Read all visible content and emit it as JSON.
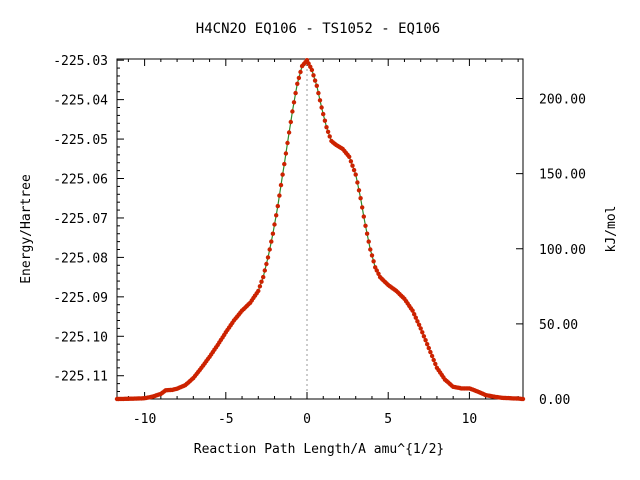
{
  "chart_data": {
    "type": "line",
    "title": "H4CN2O   EQ106 - TS1052 - EQ106",
    "xlabel": "Reaction Path Length/A amu^{1/2}",
    "ylabel": "Energy/Hartree",
    "y2label": "kJ/mol",
    "xlim": [
      -11.7,
      13.3
    ],
    "ylim": [
      -225.1159,
      -225.0297
    ],
    "y2lim": [
      0,
      226.3
    ],
    "grid": false,
    "x_ticks": [
      -10,
      -5,
      0,
      5,
      10
    ],
    "x_tick_labels": [
      "-10",
      "-5",
      "0",
      "5",
      "10"
    ],
    "y_ticks": [
      -225.03,
      -225.04,
      -225.05,
      -225.06,
      -225.07,
      -225.08,
      -225.09,
      -225.1,
      -225.11
    ],
    "y_tick_labels": [
      "-225.03",
      "-225.04",
      "-225.05",
      "-225.06",
      "-225.07",
      "-225.08",
      "-225.09",
      "-225.10",
      "-225.11"
    ],
    "y2_ticks": [
      0,
      50,
      100,
      150,
      200
    ],
    "y2_tick_labels": [
      "0.00",
      "50.00",
      "100.00",
      "150.00",
      "200.00"
    ],
    "ts_marker_x": 0,
    "series": [
      {
        "color": "#cc2200",
        "line_color": "#2a8a2a",
        "x": [
          -11.7,
          -10.5,
          -10.0,
          -9.5,
          -9.0,
          -8.7,
          -8.3,
          -8.0,
          -7.5,
          -7.0,
          -6.5,
          -6.0,
          -5.5,
          -5.0,
          -4.5,
          -4.0,
          -3.5,
          -3.0,
          -2.7,
          -2.4,
          -2.1,
          -1.8,
          -1.5,
          -1.2,
          -0.9,
          -0.6,
          -0.3,
          0.0,
          0.3,
          0.6,
          0.9,
          1.2,
          1.5,
          1.8,
          2.2,
          2.6,
          3.0,
          3.3,
          3.6,
          3.9,
          4.2,
          4.5,
          5.0,
          5.5,
          6.0,
          6.5,
          7.0,
          7.5,
          8.0,
          8.5,
          9.0,
          9.5,
          10.0,
          10.5,
          11.0,
          11.5,
          12.0,
          12.5,
          13.0,
          13.3
        ],
        "y": [
          -225.1159,
          -225.1158,
          -225.1157,
          -225.1153,
          -225.1146,
          -225.1137,
          -225.1136,
          -225.1133,
          -225.1124,
          -225.1106,
          -225.108,
          -225.1052,
          -225.1022,
          -225.099,
          -225.096,
          -225.0935,
          -225.0915,
          -225.0885,
          -225.085,
          -225.08,
          -225.074,
          -225.067,
          -225.059,
          -225.051,
          -225.043,
          -225.036,
          -225.0315,
          -225.03,
          -225.0325,
          -225.0365,
          -225.042,
          -225.047,
          -225.0505,
          -225.0515,
          -225.0525,
          -225.0545,
          -225.059,
          -225.065,
          -225.072,
          -225.078,
          -225.0825,
          -225.085,
          -225.087,
          -225.0885,
          -225.0905,
          -225.0935,
          -225.098,
          -225.103,
          -225.108,
          -225.111,
          -225.1128,
          -225.1132,
          -225.1132,
          -225.114,
          -225.1149,
          -225.1153,
          -225.1156,
          -225.1157,
          -225.1158,
          -225.1159
        ]
      }
    ]
  }
}
